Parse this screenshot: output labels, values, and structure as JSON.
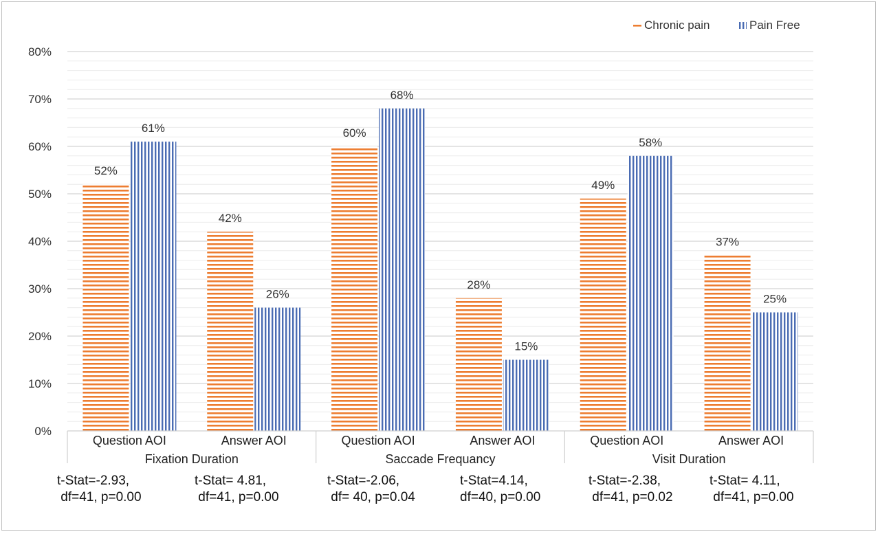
{
  "chart_data": {
    "type": "bar",
    "ylim": [
      0,
      80
    ],
    "y_ticks": [
      "0%",
      "10%",
      "20%",
      "30%",
      "40%",
      "50%",
      "60%",
      "70%",
      "80%"
    ],
    "grid": true,
    "legend_position": "top-right",
    "groups": [
      {
        "name": "Fixation Duration",
        "categories": [
          "Question AOI",
          "Answer AOI"
        ],
        "stats": [
          "t-Stat=-2.93,\n df=41, p=0.00",
          "t-Stat= 4.81,\n df=41, p=0.00"
        ]
      },
      {
        "name": "Saccade Frequancy",
        "categories": [
          "Question AOI",
          "Answer AOI"
        ],
        "stats": [
          "t-Stat=-2.06,\n df= 40, p=0.04",
          "t-Stat=4.14,\ndf=40, p=0.00"
        ]
      },
      {
        "name": "Visit Duration",
        "categories": [
          "Question AOI",
          "Answer AOI"
        ],
        "stats": [
          "t-Stat=-2.38,\n df=41, p=0.02",
          "t-Stat= 4.11,\n df=41, p=0.00"
        ]
      }
    ],
    "series": [
      {
        "name": "Chronic pain",
        "color": "#ed7d31",
        "pattern": "horizontal-stripes",
        "values": [
          52,
          42,
          60,
          28,
          49,
          37
        ],
        "labels": [
          "52%",
          "42%",
          "60%",
          "28%",
          "49%",
          "37%"
        ]
      },
      {
        "name": "Pain Free",
        "color": "#4a6cb3",
        "pattern": "vertical-stripes",
        "values": [
          61,
          26,
          68,
          15,
          58,
          25
        ],
        "labels": [
          "61%",
          "26%",
          "68%",
          "15%",
          "58%",
          "25%"
        ]
      }
    ]
  }
}
